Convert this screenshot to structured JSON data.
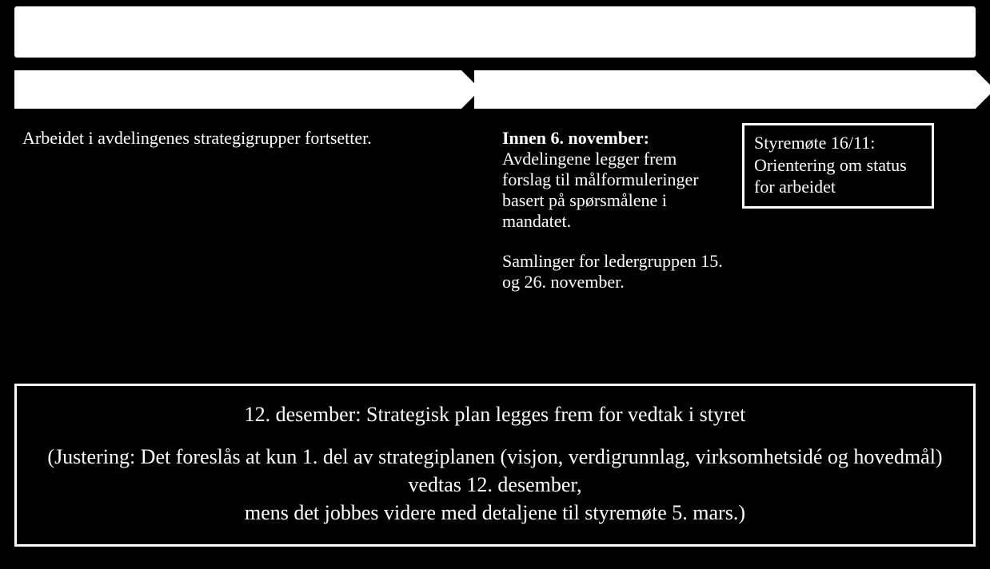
{
  "diagram": {
    "type": "timeline-flowchart",
    "background_color": "#000000",
    "text_color": "#ffffff",
    "arrow_fill": "#ffffff",
    "border_color": "#ffffff",
    "font_family": "Georgia, serif",
    "body_fontsize": 22,
    "bottom_fontsize": 26
  },
  "top_bar": {
    "fill": "#ffffff"
  },
  "arrows": {
    "left": {
      "fill": "#ffffff"
    },
    "right": {
      "fill": "#ffffff"
    }
  },
  "left_column": {
    "text": "Arbeidet i avdelingenes strategigrupper fortsetter."
  },
  "mid_column": {
    "deadline_label": "Innen 6. november:",
    "deadline_body": "Avdelingene legger frem forslag til målformuleringer basert på spørsmålene i mandatet.",
    "meetings": "Samlinger for ledergruppen 15. og 26. november."
  },
  "status_box": {
    "text": "Styremøte 16/11: Orientering om status for arbeidet"
  },
  "bottom_box": {
    "line1": "12. desember: Strategisk plan legges frem for vedtak i styret",
    "line2": "(Justering: Det foreslås at kun 1. del av strategiplanen (visjon, verdigrunnlag, virksomhetsidé og hovedmål) vedtas 12. desember,",
    "line3": "mens det jobbes videre med detaljene til styremøte 5. mars.)"
  }
}
